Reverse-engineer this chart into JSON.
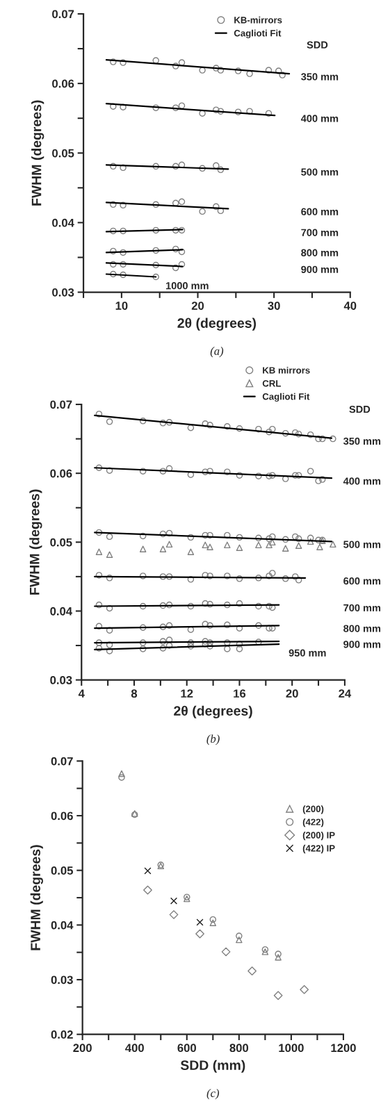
{
  "chart_data": [
    {
      "type": "scatter",
      "xlabel": "2θ (degrees)",
      "ylabel": "FWHM (degrees)",
      "xlim": [
        5,
        40
      ],
      "ylim": [
        0.03,
        0.07
      ],
      "xticks": [
        {
          "value": 5,
          "label": null
        },
        10,
        {
          "value": 15,
          "label": null
        },
        20,
        {
          "value": 25,
          "label": null
        },
        30,
        {
          "value": 35,
          "label": null
        },
        40
      ],
      "yticks": [
        0.03,
        {
          "value": 0.035,
          "label": null
        },
        0.04,
        {
          "value": 0.045,
          "label": null
        },
        0.05,
        {
          "value": 0.055,
          "label": null
        },
        0.06,
        {
          "value": 0.065,
          "label": null
        },
        0.07
      ],
      "legend": "top",
      "annotations": [
        "SDD",
        "350 mm",
        "400 mm",
        "500 mm",
        "600 mm",
        "700 mm",
        "800 mm",
        "900 mm",
        "1000 mm",
        "(a)"
      ],
      "series": [
        {
          "name": "KB-mirrors",
          "marker": "circle",
          "color": "#808080",
          "x": [
            8.9,
            10.2,
            14.5,
            17.1,
            17.9,
            20.6,
            22.4,
            23.0,
            25.3,
            26.8,
            29.3,
            30.6,
            31.1,
            8.9,
            10.2,
            14.5,
            17.1,
            17.9,
            20.6,
            22.4,
            23.0,
            25.3,
            26.8,
            29.3,
            8.9,
            10.2,
            14.5,
            17.1,
            17.9,
            20.6,
            22.4,
            23.0,
            8.9,
            10.2,
            14.5,
            17.1,
            17.9,
            20.6,
            22.4,
            23.0,
            8.9,
            10.2,
            14.5,
            17.1,
            17.9,
            8.9,
            10.2,
            14.5,
            17.1,
            17.9,
            8.9,
            10.2,
            14.5,
            17.1,
            17.9,
            8.9,
            10.2,
            14.5
          ],
          "values": [
            0.0631,
            0.063,
            0.0633,
            0.0625,
            0.063,
            0.0619,
            0.0622,
            0.0619,
            0.0618,
            0.0614,
            0.0619,
            0.0618,
            0.0612,
            0.0567,
            0.0566,
            0.0565,
            0.0565,
            0.0568,
            0.0557,
            0.0562,
            0.056,
            0.0559,
            0.056,
            0.0557,
            0.0481,
            0.0479,
            0.0481,
            0.0481,
            0.0483,
            0.0478,
            0.0482,
            0.0476,
            0.0426,
            0.0425,
            0.0426,
            0.0428,
            0.043,
            0.0416,
            0.0423,
            0.0417,
            0.0388,
            0.0388,
            0.0389,
            0.0389,
            0.0389,
            0.0359,
            0.0357,
            0.036,
            0.0362,
            0.0358,
            0.034,
            0.034,
            0.0339,
            0.0335,
            0.034,
            0.0326,
            0.0325,
            0.0322
          ]
        },
        {
          "name": "Caglioti Fit",
          "type": "line",
          "color": "#000000",
          "x": [
            8.0,
            32.0
          ],
          "values": [
            0.0634,
            0.0614
          ]
        },
        {
          "type": "line",
          "color": "#000000",
          "x": [
            8.0,
            30.1
          ],
          "values": [
            0.0571,
            0.0554
          ]
        },
        {
          "type": "line",
          "color": "#000000",
          "x": [
            8.0,
            24.0
          ],
          "values": [
            0.0483,
            0.0477
          ]
        },
        {
          "type": "line",
          "color": "#000000",
          "x": [
            8.0,
            24.0
          ],
          "values": [
            0.0429,
            0.042
          ]
        },
        {
          "type": "line",
          "color": "#000000",
          "x": [
            8.0,
            18.0
          ],
          "values": [
            0.0387,
            0.039
          ]
        },
        {
          "type": "line",
          "color": "#000000",
          "x": [
            8.0,
            18.0
          ],
          "values": [
            0.0357,
            0.0361
          ]
        },
        {
          "type": "line",
          "color": "#000000",
          "x": [
            8.0,
            18.0
          ],
          "values": [
            0.0342,
            0.0337
          ]
        },
        {
          "type": "line",
          "color": "#000000",
          "x": [
            8.0,
            14.5
          ],
          "values": [
            0.0326,
            0.0322
          ]
        }
      ]
    },
    {
      "type": "scatter",
      "xlabel": "2θ (degrees)",
      "ylabel": "FWHM (degrees)",
      "xlim": [
        4,
        24
      ],
      "ylim": [
        0.03,
        0.07
      ],
      "xticks": [
        4,
        {
          "value": 6,
          "label": null
        },
        8,
        {
          "value": 10,
          "label": null
        },
        12,
        {
          "value": 14,
          "label": null
        },
        16,
        {
          "value": 18,
          "label": null
        },
        20,
        {
          "value": 22,
          "label": null
        },
        24
      ],
      "yticks": [
        0.03,
        {
          "value": 0.035,
          "label": null
        },
        0.04,
        {
          "value": 0.045,
          "label": null
        },
        0.05,
        {
          "value": 0.055,
          "label": null
        },
        0.06,
        {
          "value": 0.065,
          "label": null
        },
        0.07
      ],
      "legend": "top right",
      "annotations": [
        "SDD",
        "350 mm",
        "400 mm",
        "500 mm",
        "600 mm",
        "700 mm",
        "800 mm",
        "900 mm",
        "950 mm",
        "(b)"
      ],
      "series": [
        {
          "name": "KB mirrors",
          "marker": "circle",
          "color": "#808080",
          "x": [
            5.33,
            6.13,
            8.67,
            10.19,
            10.67,
            12.3,
            13.4,
            13.76,
            15.07,
            16.0,
            17.45,
            18.25,
            18.5,
            19.5,
            20.24,
            20.5,
            21.4,
            22.0,
            22.3,
            23.1,
            5.33,
            6.13,
            8.67,
            10.19,
            10.67,
            12.3,
            13.4,
            13.76,
            15.07,
            16.0,
            17.45,
            18.25,
            18.5,
            19.5,
            20.24,
            20.5,
            21.4,
            22.0,
            22.3,
            5.33,
            6.13,
            8.67,
            10.19,
            10.67,
            12.3,
            13.4,
            13.76,
            15.07,
            16.0,
            17.45,
            18.25,
            18.5,
            19.5,
            20.24,
            20.5,
            21.4,
            22.0,
            22.3,
            5.33,
            6.13,
            8.67,
            10.19,
            10.67,
            12.3,
            13.4,
            13.76,
            15.07,
            16.0,
            17.45,
            18.25,
            18.5,
            19.5,
            20.24,
            20.5,
            5.33,
            6.13,
            8.67,
            10.19,
            10.67,
            12.3,
            13.4,
            13.76,
            15.07,
            16.0,
            17.45,
            18.25,
            18.5,
            5.33,
            6.13,
            8.67,
            10.19,
            10.67,
            12.3,
            13.4,
            13.76,
            15.07,
            16.0,
            17.45,
            18.25,
            18.5,
            5.33,
            6.13,
            8.67,
            10.19,
            10.67,
            12.3,
            13.4,
            13.76,
            15.07,
            16.0,
            17.45,
            5.33,
            6.13,
            8.67,
            10.19,
            10.67,
            12.3,
            13.4,
            13.76,
            15.07,
            16.0
          ],
          "values": [
            0.0686,
            0.0675,
            0.0676,
            0.0673,
            0.0674,
            0.0666,
            0.0672,
            0.067,
            0.0668,
            0.0665,
            0.0664,
            0.066,
            0.0664,
            0.0658,
            0.0659,
            0.0657,
            0.0656,
            0.065,
            0.065,
            0.065,
            0.0608,
            0.0604,
            0.0603,
            0.0603,
            0.0607,
            0.0598,
            0.0602,
            0.0603,
            0.0602,
            0.0597,
            0.0596,
            0.0596,
            0.0597,
            0.0592,
            0.0597,
            0.0597,
            0.0603,
            0.0589,
            0.0591,
            0.0514,
            0.0508,
            0.0509,
            0.0512,
            0.0513,
            0.0507,
            0.051,
            0.051,
            0.051,
            0.0507,
            0.0506,
            0.0505,
            0.0508,
            0.0504,
            0.0508,
            0.0505,
            0.0506,
            0.0503,
            0.0503,
            0.0452,
            0.0448,
            0.0451,
            0.045,
            0.045,
            0.0446,
            0.0452,
            0.0451,
            0.0451,
            0.0447,
            0.0448,
            0.0451,
            0.0455,
            0.0447,
            0.045,
            0.0445,
            0.0409,
            0.0404,
            0.0407,
            0.0408,
            0.0409,
            0.0407,
            0.0411,
            0.041,
            0.0409,
            0.0411,
            0.0407,
            0.0407,
            0.0405,
            0.0378,
            0.0372,
            0.0376,
            0.0377,
            0.0379,
            0.0373,
            0.0381,
            0.0379,
            0.038,
            0.0375,
            0.0379,
            0.0375,
            0.0375,
            0.0354,
            0.0351,
            0.0354,
            0.0356,
            0.0358,
            0.0354,
            0.0356,
            0.0354,
            0.0354,
            0.0352,
            0.0355,
            0.0346,
            0.0342,
            0.0345,
            0.0346,
            0.035,
            0.0349,
            0.0352,
            0.0349,
            0.0345,
            0.0345
          ]
        },
        {
          "name": "CRL",
          "marker": "triangle",
          "color": "#808080",
          "x": [
            5.33,
            6.13,
            8.67,
            10.19,
            10.67,
            12.3,
            13.4,
            13.76,
            15.07,
            16.0,
            17.45,
            18.25,
            18.5,
            19.5,
            20.5,
            21.4,
            22.1,
            22.3,
            23.1
          ],
          "values": [
            0.0486,
            0.0482,
            0.049,
            0.049,
            0.0497,
            0.0486,
            0.0496,
            0.0493,
            0.0496,
            0.0492,
            0.0496,
            0.0496,
            0.05,
            0.0491,
            0.0495,
            0.0501,
            0.0493,
            0.0502,
            0.0497
          ]
        },
        {
          "name": "Caglioti Fit",
          "type": "line",
          "color": "#000000",
          "x": [
            5.0,
            23.0
          ],
          "values": [
            0.0684,
            0.0651
          ]
        },
        {
          "type": "line",
          "color": "#000000",
          "x": [
            5.0,
            23.0
          ],
          "values": [
            0.0608,
            0.0593
          ]
        },
        {
          "type": "line",
          "color": "#000000",
          "x": [
            5.0,
            23.0
          ],
          "values": [
            0.0514,
            0.0501
          ]
        },
        {
          "type": "line",
          "color": "#000000",
          "x": [
            5.0,
            21.0
          ],
          "values": [
            0.045,
            0.0448
          ]
        },
        {
          "type": "line",
          "color": "#000000",
          "x": [
            5.0,
            19.0
          ],
          "values": [
            0.0407,
            0.0409
          ]
        },
        {
          "type": "line",
          "color": "#000000",
          "x": [
            5.0,
            19.0
          ],
          "values": [
            0.0375,
            0.0379
          ]
        },
        {
          "type": "line",
          "color": "#000000",
          "x": [
            5.0,
            19.0
          ],
          "values": [
            0.0354,
            0.0356
          ]
        },
        {
          "type": "line",
          "color": "#000000",
          "x": [
            5.0,
            19.0
          ],
          "values": [
            0.0344,
            0.0352
          ]
        }
      ]
    },
    {
      "type": "scatter",
      "xlabel": "SDD (mm)",
      "ylabel": "FWHM (degrees)",
      "xlim": [
        200,
        1200
      ],
      "ylim": [
        0.02,
        0.07
      ],
      "xticks": [
        200,
        {
          "value": 300,
          "label": null
        },
        400,
        {
          "value": 500,
          "label": null
        },
        600,
        {
          "value": 700,
          "label": null
        },
        800,
        {
          "value": 900,
          "label": null
        },
        1000,
        {
          "value": 1100,
          "label": null
        },
        1200
      ],
      "yticks": [
        0.02,
        {
          "value": 0.025,
          "label": null
        },
        0.03,
        {
          "value": 0.035,
          "label": null
        },
        0.04,
        {
          "value": 0.045,
          "label": null
        },
        0.05,
        {
          "value": 0.055,
          "label": null
        },
        0.06,
        {
          "value": 0.065,
          "label": null
        },
        0.07
      ],
      "legend": "right",
      "annotations": [
        "(c)"
      ],
      "series": [
        {
          "name": "(200)",
          "marker": "triangle",
          "color": "#808080",
          "x": [
            350,
            400,
            500,
            600,
            700,
            800,
            900,
            950
          ],
          "values": [
            0.0677,
            0.0604,
            0.0508,
            0.0448,
            0.0404,
            0.0373,
            0.0351,
            0.0341
          ]
        },
        {
          "name": "(422)",
          "marker": "circle",
          "color": "#808080",
          "x": [
            350,
            400,
            500,
            600,
            700,
            800,
            900,
            950
          ],
          "values": [
            0.067,
            0.0602,
            0.051,
            0.0451,
            0.041,
            0.038,
            0.0355,
            0.0347
          ]
        },
        {
          "name": "(200) IP",
          "marker": "diamond",
          "color": "#808080",
          "x": [
            450,
            550,
            650,
            750,
            850,
            950,
            1050
          ],
          "values": [
            0.0464,
            0.0419,
            0.0384,
            0.0351,
            0.0316,
            0.0271,
            0.0282
          ]
        },
        {
          "name": "(422) IP",
          "marker": "cross",
          "color": "#202020",
          "x": [
            450,
            550,
            650
          ],
          "values": [
            0.0499,
            0.0444,
            0.0405
          ]
        }
      ]
    }
  ]
}
